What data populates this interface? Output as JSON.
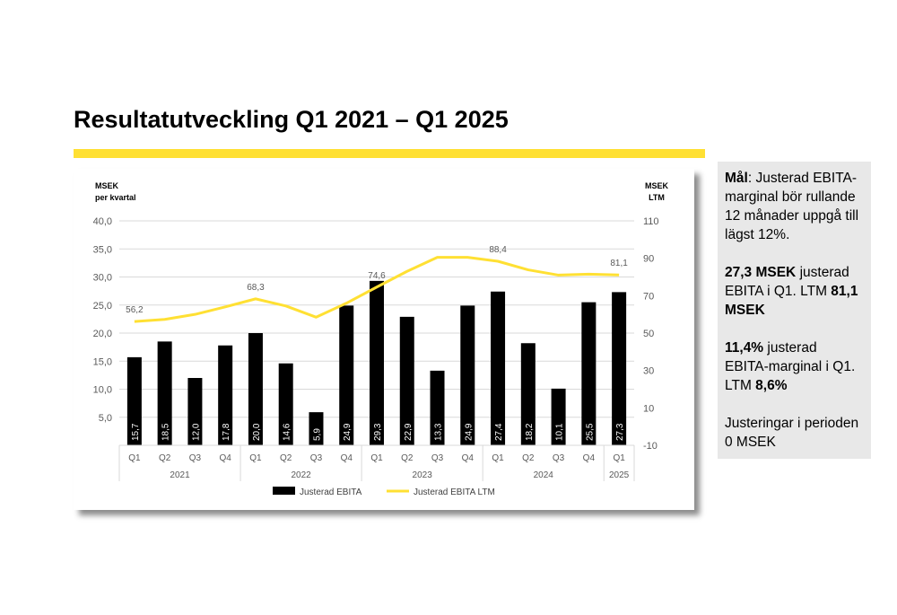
{
  "page": {
    "title": "Resultatutveckling Q1 2021 – Q1 2025"
  },
  "info_box": {
    "goal_label": "Mål",
    "goal_text": ":  Justerad EBITA-marginal bör rullande 12 månader uppgå till lägst 12%.",
    "p2_bold1": "27,3 MSEK",
    "p2_text": " justerad EBITA i Q1. LTM ",
    "p2_bold2": "81,1 MSEK",
    "p3_bold": "11,4%",
    "p3_text1": " justerad EBITA-marginal i Q1. LTM ",
    "p3_bold2": "8,6%",
    "p4_text": "Justeringar i perioden 0 MSEK"
  },
  "colors": {
    "bar": "#000000",
    "line": "#ffe033",
    "accent_bar": "#ffe033",
    "info_bg": "#e8e8e8"
  },
  "chart_data": {
    "type": "bar",
    "categories": [
      "Q1",
      "Q2",
      "Q3",
      "Q4",
      "Q1",
      "Q2",
      "Q3",
      "Q4",
      "Q1",
      "Q2",
      "Q3",
      "Q4",
      "Q1",
      "Q2",
      "Q3",
      "Q4",
      "Q1"
    ],
    "years": [
      {
        "label": "2021",
        "span": 4
      },
      {
        "label": "2022",
        "span": 4
      },
      {
        "label": "2023",
        "span": 4
      },
      {
        "label": "2024",
        "span": 4
      },
      {
        "label": "2025",
        "span": 1
      }
    ],
    "series": [
      {
        "name": "Justerad EBITA",
        "kind": "bar",
        "axis": "left",
        "values": [
          15.7,
          18.5,
          12.0,
          17.8,
          20.0,
          14.6,
          5.9,
          24.9,
          29.3,
          22.9,
          13.3,
          24.9,
          27.4,
          18.2,
          10.1,
          25.5,
          27.3
        ],
        "labels": [
          "15,7",
          "18,5",
          "12,0",
          "17,8",
          "20,0",
          "14,6",
          "5,9",
          "24,9",
          "29,3",
          "22,9",
          "13,3",
          "24,9",
          "27,4",
          "18,2",
          "10,1",
          "25,5",
          "27,3"
        ]
      },
      {
        "name": "Justerad EBITA LTM",
        "kind": "line",
        "axis": "right",
        "values": [
          56.2,
          57.3,
          60.0,
          64.0,
          68.3,
          64.5,
          58.5,
          66.0,
          74.6,
          83.0,
          90.5,
          90.5,
          88.4,
          83.8,
          81.0,
          81.5,
          81.1
        ]
      }
    ],
    "line_annotations": [
      {
        "index": 0,
        "label": "56,2"
      },
      {
        "index": 4,
        "label": "68,3"
      },
      {
        "index": 8,
        "label": "74,6"
      },
      {
        "index": 12,
        "label": "88,4"
      },
      {
        "index": 16,
        "label": "81,1"
      }
    ],
    "y_left": {
      "title_line1": "MSEK",
      "title_line2": "per kvartal",
      "ticks": [
        5,
        10,
        15,
        20,
        25,
        30,
        35,
        40
      ],
      "tick_labels": [
        "5,0",
        "10,0",
        "15,0",
        "20,0",
        "25,0",
        "30,0",
        "35,0",
        "40,0"
      ],
      "ylim": [
        0,
        40
      ]
    },
    "y_right": {
      "title_line1": "MSEK",
      "title_line2": "LTM",
      "ticks": [
        -10,
        10,
        30,
        50,
        70,
        90,
        110
      ],
      "tick_labels": [
        "-10",
        "10",
        "30",
        "50",
        "70",
        "90",
        "110"
      ],
      "ylim": [
        -10,
        110
      ]
    },
    "grid": "horizontal",
    "legend_position": "bottom"
  }
}
